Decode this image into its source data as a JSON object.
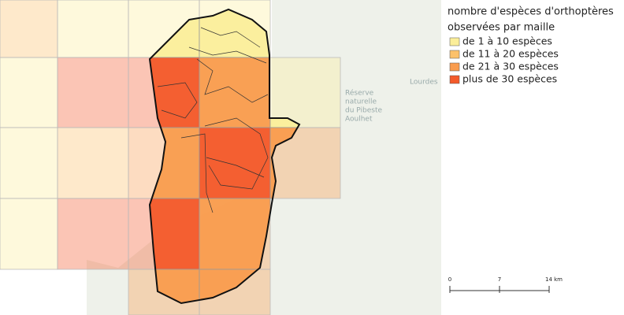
{
  "legend": {
    "title_lines": [
      "nombre d'espèces d'orthoptères",
      "observées par maille"
    ],
    "items": [
      {
        "label": "de 1 à 10 espèces",
        "color": "#fbee9a"
      },
      {
        "label": "de 11 à 20 espèces",
        "color": "#fcc16a"
      },
      {
        "label": "de 21 à 30 espèces",
        "color": "#f99c4e"
      },
      {
        "label": "plus de 30 espèces",
        "color": "#f35a2a"
      }
    ]
  },
  "scale": {
    "labels": [
      "0",
      "7",
      "14 km"
    ]
  },
  "places": [
    "Lourdes",
    "Réserve",
    "naturelle",
    "du Pibeste",
    "Aoulhet"
  ]
}
